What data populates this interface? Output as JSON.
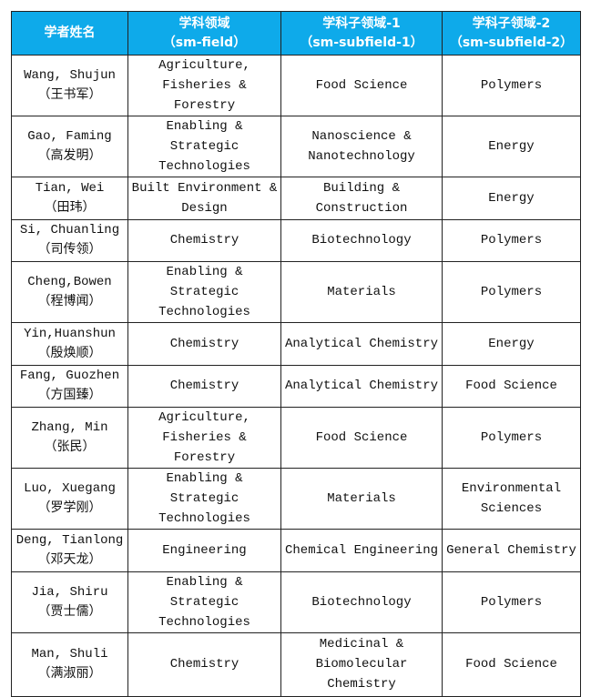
{
  "table": {
    "header": [
      [
        "学者姓名"
      ],
      [
        "学科领域",
        "（sm-field）"
      ],
      [
        "学科子领域-1",
        "（sm-subfield-1）"
      ],
      [
        "学科子领域-2",
        "（sm-subfield-2）"
      ]
    ],
    "rows": [
      [
        [
          "Wang, Shujun",
          "（王书军）"
        ],
        [
          "Agriculture,",
          "Fisheries & Forestry"
        ],
        [
          "Food Science"
        ],
        [
          "Polymers"
        ]
      ],
      [
        [
          "Gao, Faming",
          "（高发明）"
        ],
        [
          "Enabling & Strategic",
          "Technologies"
        ],
        [
          "Nanoscience &",
          "Nanotechnology"
        ],
        [
          "Energy"
        ]
      ],
      [
        [
          "Tian, Wei",
          "（田玮）"
        ],
        [
          "Built Environment &",
          "Design"
        ],
        [
          "Building &",
          "Construction"
        ],
        [
          "Energy"
        ]
      ],
      [
        [
          "Si, Chuanling",
          "（司传领）"
        ],
        [
          "Chemistry"
        ],
        [
          "Biotechnology"
        ],
        [
          "Polymers"
        ]
      ],
      [
        [
          "Cheng,Bowen",
          "（程博闻）"
        ],
        [
          "Enabling & Strategic",
          "Technologies"
        ],
        [
          "Materials"
        ],
        [
          "Polymers"
        ]
      ],
      [
        [
          "Yin,Huanshun",
          "（殷焕顺）"
        ],
        [
          "Chemistry"
        ],
        [
          "Analytical Chemistry"
        ],
        [
          "Energy"
        ]
      ],
      [
        [
          "Fang, Guozhen",
          "（方国臻）"
        ],
        [
          "Chemistry"
        ],
        [
          "Analytical Chemistry"
        ],
        [
          "Food Science"
        ]
      ],
      [
        [
          "Zhang, Min",
          "（张民）"
        ],
        [
          "Agriculture,",
          "Fisheries & Forestry"
        ],
        [
          "Food Science"
        ],
        [
          "Polymers"
        ]
      ],
      [
        [
          "Luo, Xuegang",
          "（罗学刚）"
        ],
        [
          "Enabling & Strategic",
          "Technologies"
        ],
        [
          "Materials"
        ],
        [
          "Environmental",
          "Sciences"
        ]
      ],
      [
        [
          "Deng, Tianlong",
          "（邓天龙）"
        ],
        [
          "Engineering"
        ],
        [
          "Chemical Engineering"
        ],
        [
          "General Chemistry"
        ]
      ],
      [
        [
          "Jia, Shiru",
          "（贾士儒）"
        ],
        [
          "Enabling & Strategic",
          "Technologies"
        ],
        [
          "Biotechnology"
        ],
        [
          "Polymers"
        ]
      ],
      [
        [
          "Man, Shuli",
          "（满淑丽）"
        ],
        [
          "Chemistry"
        ],
        [
          "Medicinal &",
          "Biomolecular",
          "Chemistry"
        ],
        [
          "Food Science"
        ]
      ]
    ]
  }
}
